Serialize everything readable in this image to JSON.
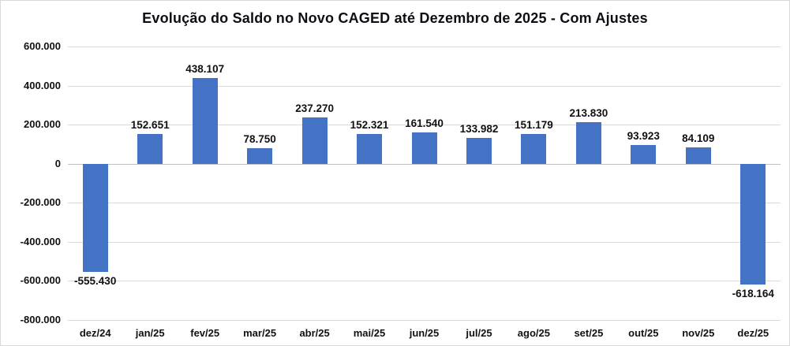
{
  "chart_data": {
    "type": "bar",
    "title": "Evolução do Saldo no Novo CAGED até Dezembro de 2025 - Com Ajustes",
    "categories": [
      "dez/24",
      "jan/25",
      "fev/25",
      "mar/25",
      "abr/25",
      "mai/25",
      "jun/25",
      "jul/25",
      "ago/25",
      "set/25",
      "out/25",
      "nov/25",
      "dez/25"
    ],
    "values": [
      -555430,
      152651,
      438107,
      78750,
      237270,
      152321,
      161540,
      133982,
      151179,
      213830,
      93923,
      84109,
      -618164
    ],
    "data_labels": [
      "-555.430",
      "152.651",
      "438.107",
      "78.750",
      "237.270",
      "152.321",
      "161.540",
      "133.982",
      "151.179",
      "213.830",
      "93.923",
      "84.109",
      "-618.164"
    ],
    "xlabel": "",
    "ylabel": "",
    "ylim": [
      -800000,
      600000
    ],
    "ytick_step": 200000,
    "ytick_labels": [
      "600.000",
      "400.000",
      "200.000",
      "0",
      "-200.000",
      "-400.000",
      "-600.000",
      "-800.000"
    ],
    "grid": true,
    "legend": "none",
    "bar_color": "#4472c4",
    "gridline_color": "#d9d9d9"
  }
}
